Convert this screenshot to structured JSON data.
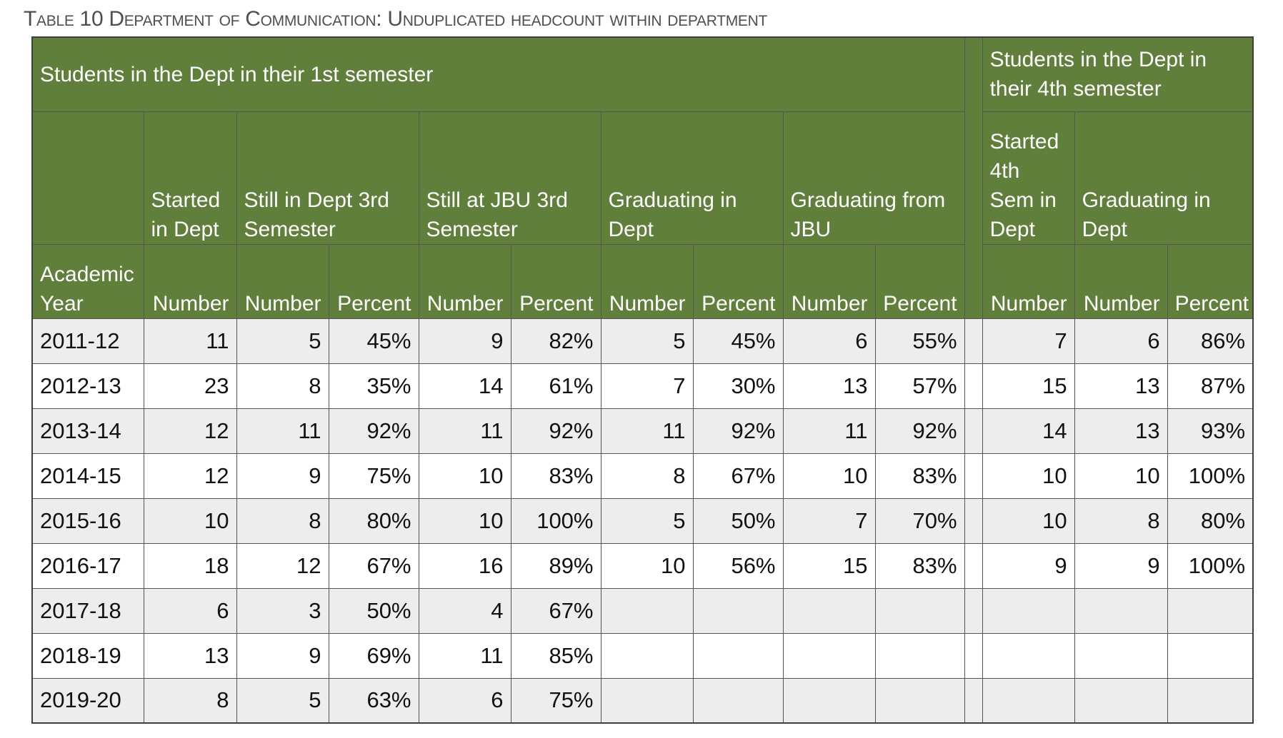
{
  "caption": "Table 10 Department of Communication: Unduplicated headcount within department",
  "groups": {
    "first": "Students in the Dept in their 1st semester",
    "fourth": "Students in the Dept in their 4th semester"
  },
  "column_groups": {
    "started": "Started in Dept",
    "still_dept": "Still in Dept 3rd Semester",
    "still_jbu": "Still at JBU 3rd Semester",
    "grad_dept": "Graduating in Dept",
    "grad_jbu": "Graduating from JBU",
    "started4": "Started 4th Sem in Dept",
    "grad_dept4": "Graduating in Dept"
  },
  "subheaders": {
    "year": "Academic Year",
    "number": "Number",
    "percent": "Percent"
  },
  "rows": [
    {
      "year": "2011-12",
      "values": [
        "11",
        "5",
        "45%",
        "9",
        "82%",
        "5",
        "45%",
        "6",
        "55%",
        "7",
        "6",
        "86%"
      ]
    },
    {
      "year": "2012-13",
      "values": [
        "23",
        "8",
        "35%",
        "14",
        "61%",
        "7",
        "30%",
        "13",
        "57%",
        "15",
        "13",
        "87%"
      ]
    },
    {
      "year": "2013-14",
      "values": [
        "12",
        "11",
        "92%",
        "11",
        "92%",
        "11",
        "92%",
        "11",
        "92%",
        "14",
        "13",
        "93%"
      ]
    },
    {
      "year": "2014-15",
      "values": [
        "12",
        "9",
        "75%",
        "10",
        "83%",
        "8",
        "67%",
        "10",
        "83%",
        "10",
        "10",
        "100%"
      ]
    },
    {
      "year": "2015-16",
      "values": [
        "10",
        "8",
        "80%",
        "10",
        "100%",
        "5",
        "50%",
        "7",
        "70%",
        "10",
        "8",
        "80%"
      ]
    },
    {
      "year": "2016-17",
      "values": [
        "18",
        "12",
        "67%",
        "16",
        "89%",
        "10",
        "56%",
        "15",
        "83%",
        "9",
        "9",
        "100%"
      ]
    },
    {
      "year": "2017-18",
      "values": [
        "6",
        "3",
        "50%",
        "4",
        "67%",
        "",
        "",
        "",
        "",
        "",
        "",
        ""
      ]
    },
    {
      "year": "2018-19",
      "values": [
        "13",
        "9",
        "69%",
        "11",
        "85%",
        "",
        "",
        "",
        "",
        "",
        "",
        ""
      ]
    },
    {
      "year": "2019-20",
      "values": [
        "8",
        "5",
        "63%",
        "6",
        "75%",
        "",
        "",
        "",
        "",
        "",
        "",
        ""
      ]
    }
  ],
  "colors": {
    "header_bg": "#5f7f3a",
    "header_text": "#ffffff",
    "row_shade": "#ededed",
    "caption_text": "#4f4f4f"
  }
}
